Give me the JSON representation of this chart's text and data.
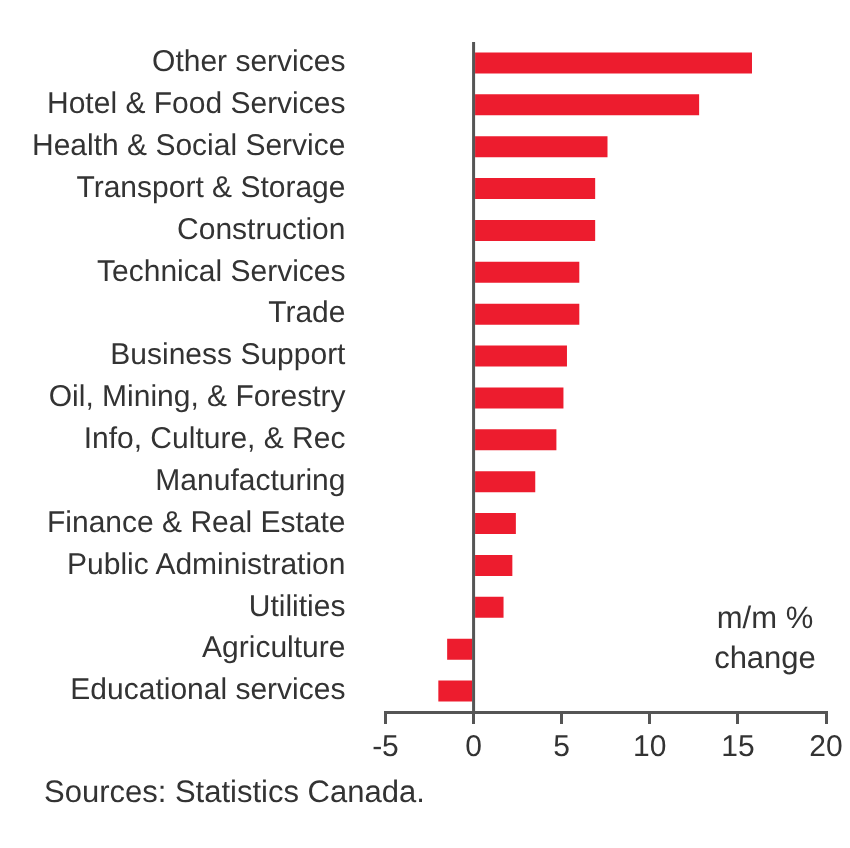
{
  "chart_data": {
    "type": "bar",
    "orientation": "horizontal",
    "categories": [
      "Other services",
      "Hotel & Food Services",
      "Health & Social Service",
      "Transport & Storage",
      "Construction",
      "Technical Services",
      "Trade",
      "Business Support",
      "Oil, Mining, & Forestry",
      "Info, Culture, & Rec",
      "Manufacturing",
      "Finance & Real Estate",
      "Public Administration",
      "Utilities",
      "Agriculture",
      "Educational services"
    ],
    "values": [
      15.8,
      12.8,
      7.6,
      6.9,
      6.9,
      6.0,
      6.0,
      5.3,
      5.1,
      4.7,
      3.5,
      2.4,
      2.2,
      1.7,
      -1.5,
      -2.0
    ],
    "color": "#ed1c2e",
    "xlim": [
      -5,
      20
    ],
    "xticks": [
      -5,
      0,
      5,
      10,
      15,
      20
    ],
    "legend": false,
    "grid": false,
    "ref_lines": [
      {
        "axis": "x",
        "value": 0,
        "color": "#555555"
      }
    ],
    "annotations": [
      "m/m % change",
      "Sources: Statistics Canada."
    ]
  }
}
